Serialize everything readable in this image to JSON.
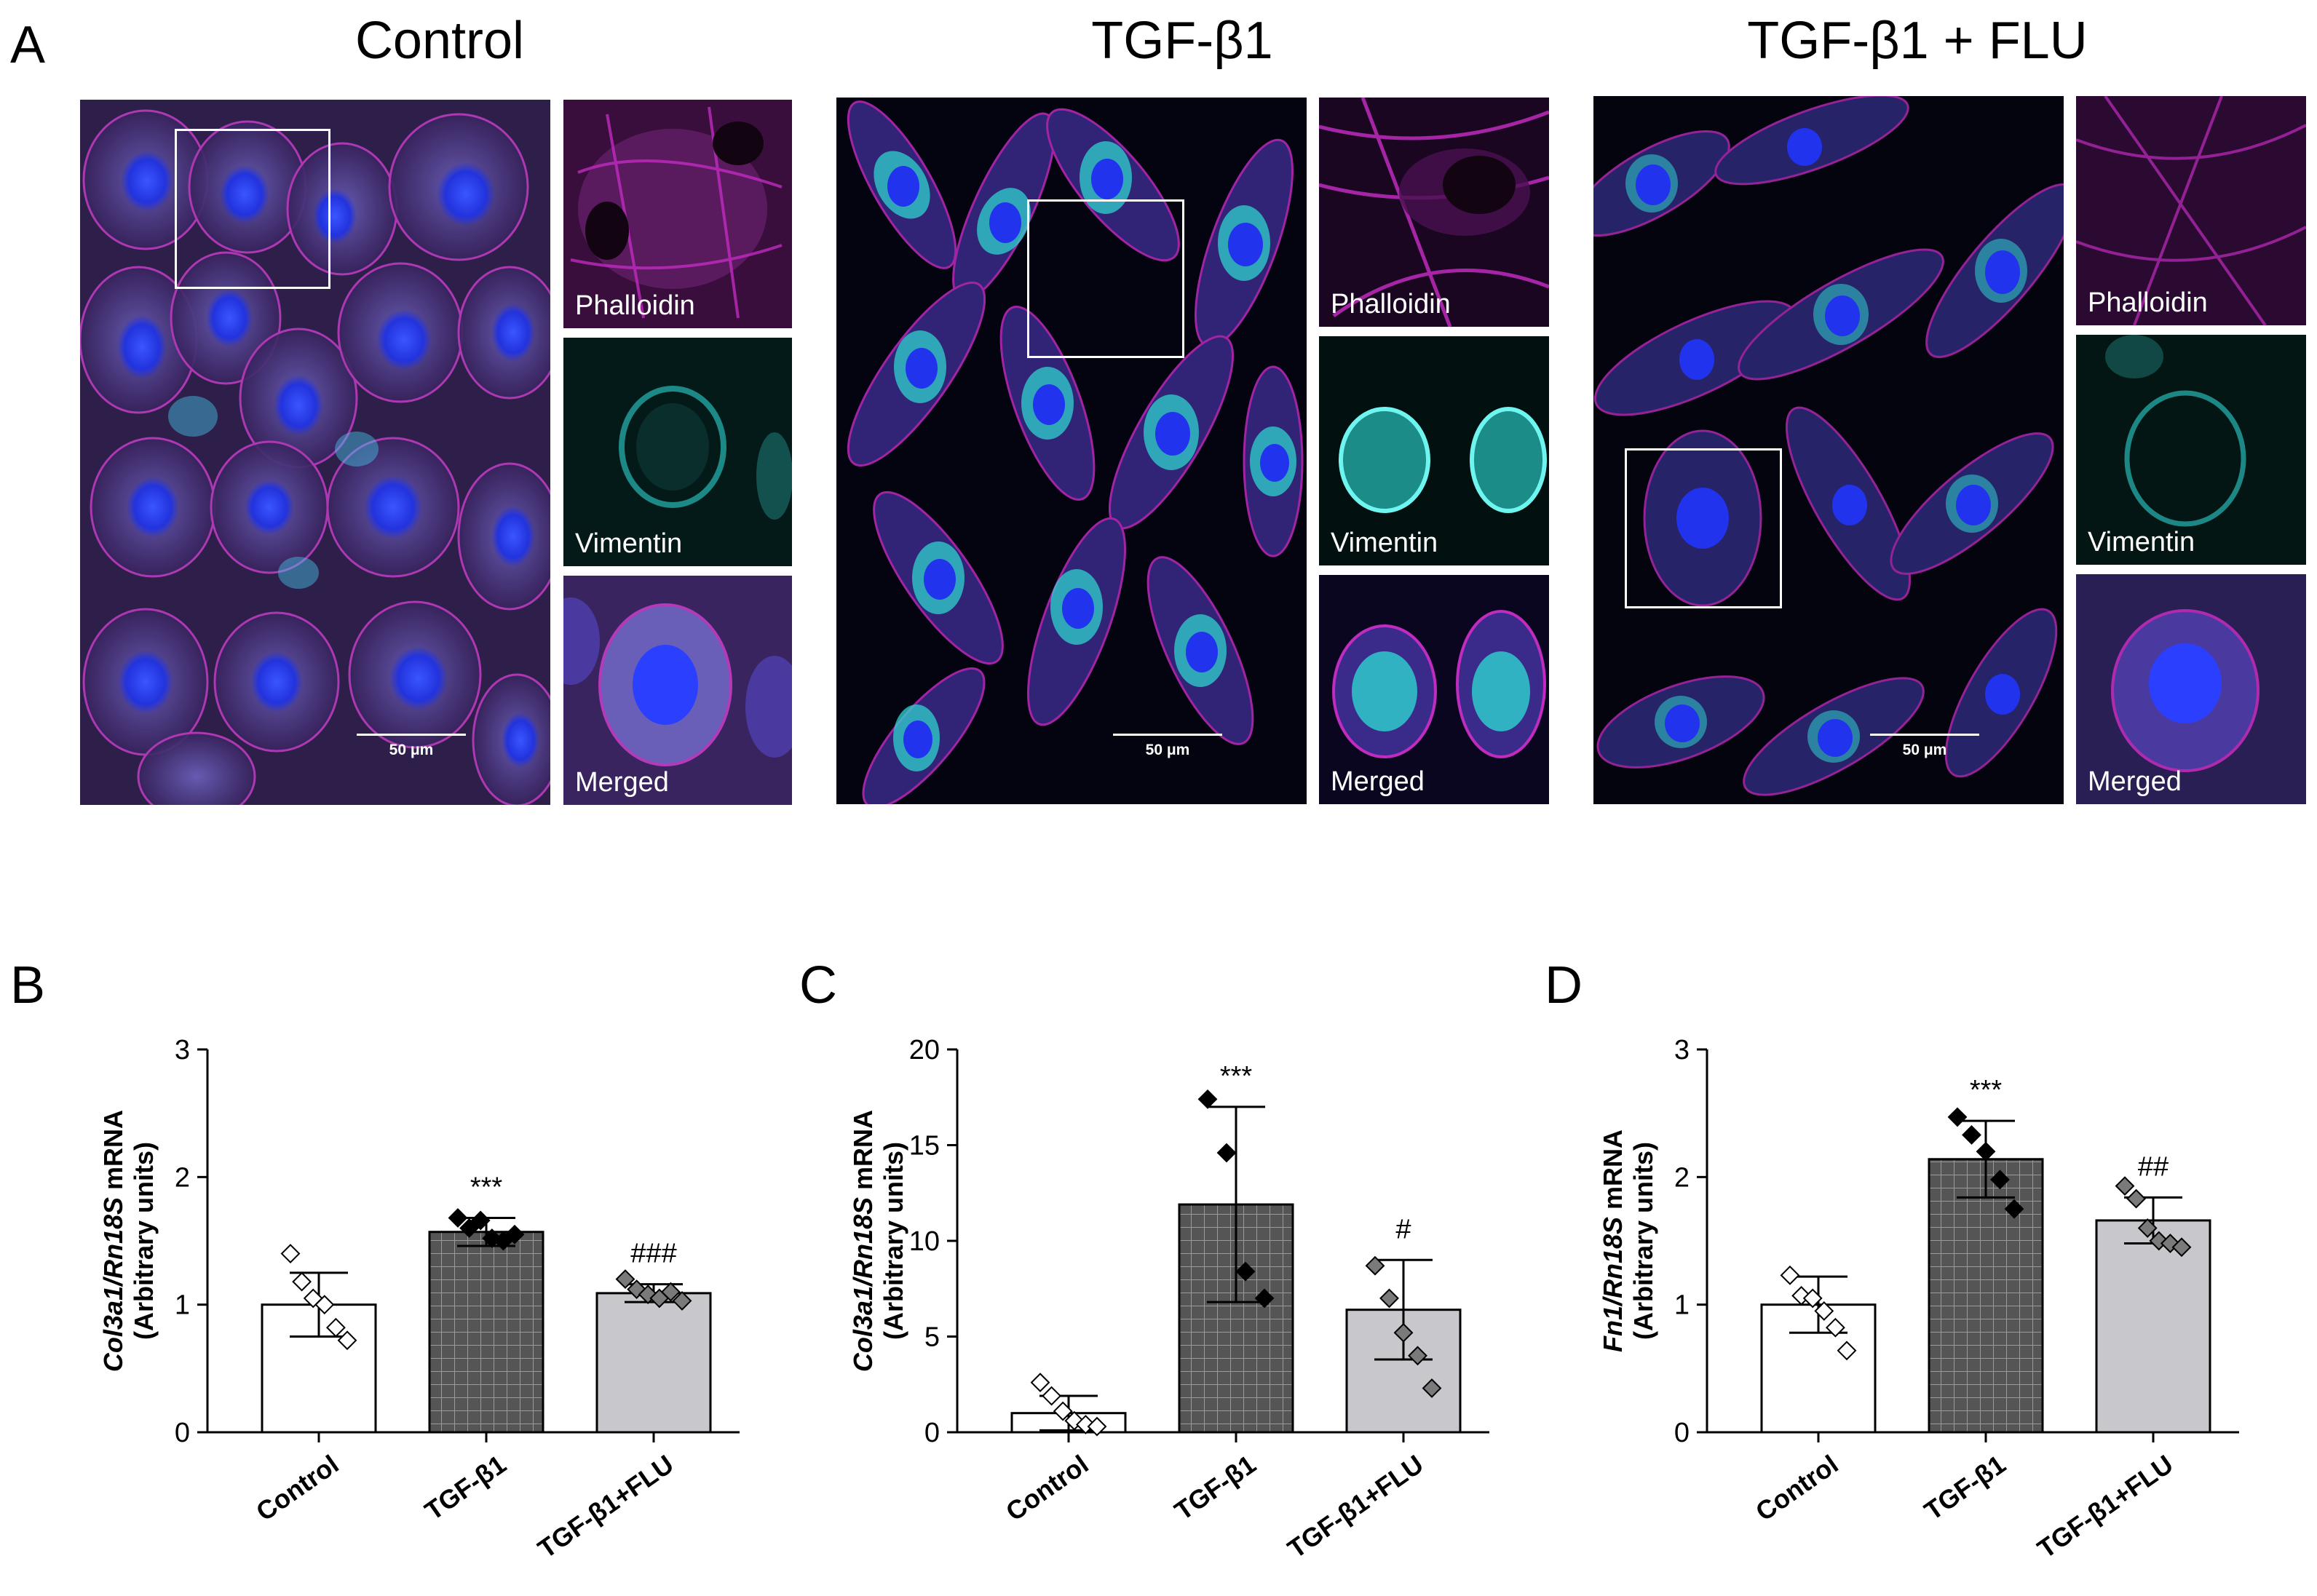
{
  "panel_letters": {
    "a": "A",
    "b": "B",
    "c": "C",
    "d": "D"
  },
  "groups": [
    {
      "title": "Control",
      "scale": "50 μm",
      "labels": {
        "phalloidin": "Phalloidin",
        "vimentin": "Vimentin",
        "merged": "Merged"
      }
    },
    {
      "title": "TGF-β1",
      "scale": "50 μm",
      "labels": {
        "phalloidin": "Phalloidin",
        "vimentin": "Vimentin",
        "merged": "Merged"
      }
    },
    {
      "title": "TGF-β1 + FLU",
      "scale": "50 μm",
      "labels": {
        "phalloidin": "Phalloidin",
        "vimentin": "Vimentin",
        "merged": "Merged"
      }
    }
  ],
  "colors": {
    "phalloidin": "#c02bc0",
    "vimentin": "#2fd4d0",
    "nucleus": "#2a3cff",
    "control_bar": "#ffffff",
    "tgf_bar": "#555555",
    "flu_bar": "#c8c8cc"
  },
  "chart_data": [
    {
      "type": "bar",
      "panel": "B",
      "gene_italic": "Col3a1/Rn18S",
      "ylabel_rest": " mRNA",
      "ylabel_line2": "(Arbitrary units)",
      "categories": [
        "Control",
        "TGF-β1",
        "TGF-β1+FLU"
      ],
      "means": [
        1.0,
        1.57,
        1.09
      ],
      "sd": [
        0.25,
        0.11,
        0.07
      ],
      "points": [
        [
          1.4,
          1.18,
          1.05,
          1.0,
          0.82,
          0.72
        ],
        [
          1.68,
          1.6,
          1.66,
          1.52,
          1.5,
          1.55
        ],
        [
          1.2,
          1.12,
          1.08,
          1.05,
          1.1,
          1.03
        ]
      ],
      "annotations": [
        "",
        "***",
        "###"
      ],
      "ylim": [
        0,
        3
      ],
      "yticks": [
        0,
        1,
        2,
        3
      ]
    },
    {
      "type": "bar",
      "panel": "C",
      "gene_italic": "Col3a1/Rn18S",
      "ylabel_rest": " mRNA",
      "ylabel_line2": "(Arbitrary units)",
      "categories": [
        "Control",
        "TGF-β1",
        "TGF-β1+FLU"
      ],
      "means": [
        1.0,
        11.9,
        6.4
      ],
      "sd": [
        0.9,
        5.1,
        2.6
      ],
      "points": [
        [
          2.6,
          1.9,
          1.1,
          0.6,
          0.4,
          0.3
        ],
        [
          17.4,
          14.6,
          8.4,
          7.0
        ],
        [
          8.7,
          7.0,
          5.2,
          4.0,
          2.3
        ]
      ],
      "annotations": [
        "",
        "***",
        "#"
      ],
      "ylim": [
        0,
        20
      ],
      "yticks": [
        0,
        5,
        10,
        15,
        20
      ]
    },
    {
      "type": "bar",
      "panel": "D",
      "gene_italic": "Fn1/Rn18S",
      "ylabel_rest": " mRNA",
      "ylabel_line2": "(Arbitrary units)",
      "categories": [
        "Control",
        "TGF-β1",
        "TGF-β1+FLU"
      ],
      "means": [
        1.0,
        2.14,
        1.66
      ],
      "sd": [
        0.22,
        0.3,
        0.18
      ],
      "points": [
        [
          1.23,
          1.07,
          1.05,
          0.95,
          0.82,
          0.64
        ],
        [
          2.47,
          2.33,
          2.2,
          1.98,
          1.75
        ],
        [
          1.93,
          1.83,
          1.6,
          1.5,
          1.48,
          1.45
        ]
      ],
      "annotations": [
        "",
        "***",
        "##"
      ],
      "ylim": [
        0,
        3
      ],
      "yticks": [
        0,
        1,
        2,
        3
      ]
    }
  ]
}
